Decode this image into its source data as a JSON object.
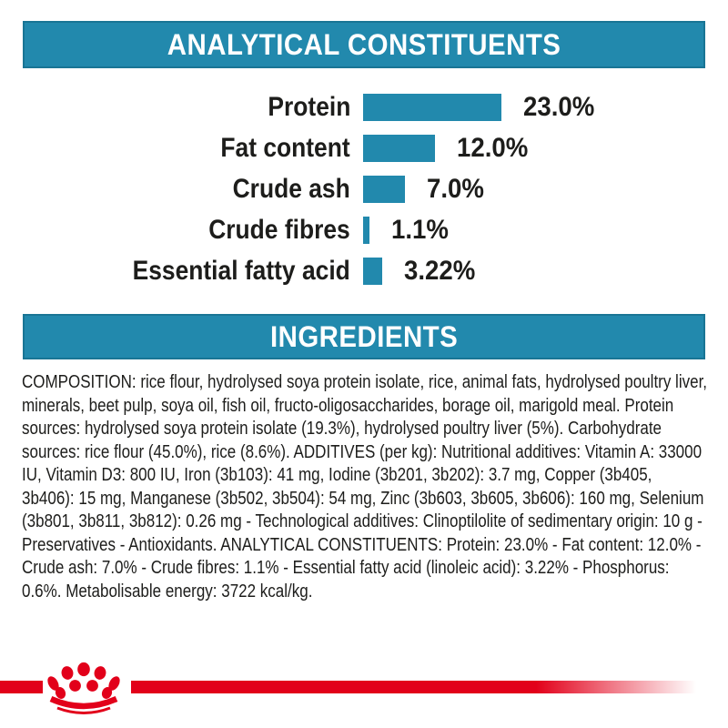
{
  "page": {
    "background": "#ffffff",
    "accent_teal": "#2289ad",
    "brand_red": "#e2001a",
    "text_color": "#1d1d1b"
  },
  "analytical_section": {
    "title": "ANALYTICAL CONSTITUENTS"
  },
  "chart_data": {
    "type": "bar",
    "orientation": "horizontal",
    "title": "ANALYTICAL CONSTITUENTS",
    "categories": [
      "Protein",
      "Fat content",
      "Crude ash",
      "Crude fibres",
      "Essential fatty acid"
    ],
    "values": [
      23.0,
      12.0,
      7.0,
      1.1,
      3.22
    ],
    "value_labels": [
      "23.0%",
      "12.0%",
      "7.0%",
      "1.1%",
      "3.22%"
    ],
    "unit": "%",
    "xlim": [
      0,
      23
    ],
    "bar_color": "#2289ad",
    "grid": false,
    "legend": false
  },
  "ingredients_section": {
    "title": "INGREDIENTS",
    "text": "COMPOSITION: rice flour, hydrolysed soya protein isolate, rice, animal fats, hydrolysed poultry liver, minerals, beet pulp, soya oil, fish oil, fructo-oligosaccharides, borage oil, marigold meal. Protein sources: hydrolysed soya protein isolate (19.3%), hydrolysed poultry liver (5%). Carbohydrate sources: rice flour (45.0%), rice (8.6%). ADDITIVES (per kg): Nutritional additives: Vitamin A: 33000 IU, Vitamin D3: 800 IU, Iron (3b103): 41 mg, Iodine (3b201, 3b202): 3.7 mg, Copper (3b405, 3b406): 15 mg, Manganese (3b502, 3b504): 54 mg, Zinc (3b603, 3b605, 3b606): 160 mg, Selenium (3b801, 3b811, 3b812): 0.26 mg - Technological additives: Clinoptilolite of sedimentary origin: 10 g - Preservatives - Antioxidants. ANALYTICAL CONSTITUENTS: Protein: 23.0% - Fat content: 12.0% - Crude ash: 7.0% - Crude fibres: 1.1% - Essential fatty acid (linoleic acid): 3.22% - Phosphorus: 0.6%. Metabolisable energy: 3722 kcal/kg."
  },
  "footer": {
    "logo_name": "royal-canin-crown-logo"
  }
}
